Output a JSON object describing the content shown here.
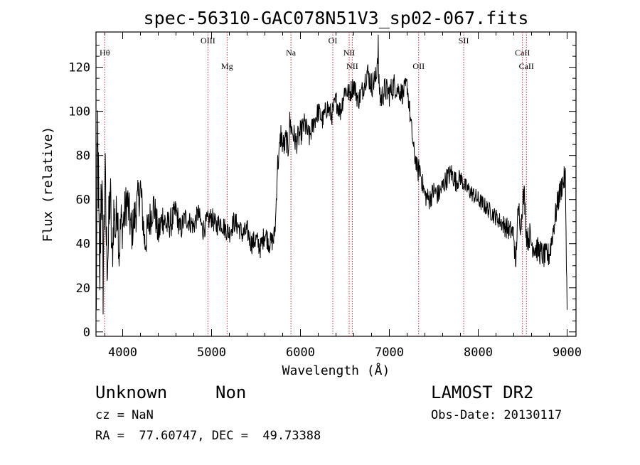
{
  "chart_data": {
    "type": "line",
    "title": "spec-56310-GAC078N51V3_sp02-067.fits",
    "xlabel": "Wavelength (Å)",
    "ylabel": "Flux (relative)",
    "xlim": [
      3700,
      9100
    ],
    "ylim": [
      -2,
      136
    ],
    "xticks": [
      4000,
      5000,
      6000,
      7000,
      8000,
      9000
    ],
    "yticks": [
      0,
      20,
      40,
      60,
      80,
      100,
      120
    ],
    "line_color": "#000000",
    "marker_line_color": "#b22222",
    "series": [
      {
        "x": [
          3700,
          3720,
          3740,
          3760,
          3780,
          3800,
          3820,
          3840,
          3860,
          3880,
          3900,
          3920,
          3940,
          3960,
          3980,
          4000,
          4050,
          4100,
          4150,
          4200,
          4250,
          4300,
          4350,
          4400,
          4450,
          4500,
          4550,
          4600,
          4650,
          4700,
          4750,
          4800,
          4850,
          4900,
          4950,
          5000,
          5050,
          5100,
          5150,
          5200,
          5250,
          5300,
          5350,
          5400,
          5450,
          5500,
          5550,
          5600,
          5650,
          5700,
          5720,
          5740,
          5760,
          5780,
          5800,
          5820,
          5840,
          5860,
          5880,
          5900,
          5950,
          6000,
          6050,
          6100,
          6150,
          6200,
          6250,
          6300,
          6350,
          6400,
          6450,
          6500,
          6550,
          6600,
          6650,
          6700,
          6750,
          6800,
          6850,
          6875,
          6880,
          6890,
          6900,
          6950,
          7000,
          7050,
          7100,
          7150,
          7200,
          7220,
          7240,
          7260,
          7280,
          7300,
          7320,
          7340,
          7360,
          7380,
          7400,
          7450,
          7500,
          7550,
          7600,
          7650,
          7700,
          7750,
          7800,
          7850,
          7900,
          7950,
          8000,
          8050,
          8100,
          8150,
          8200,
          8250,
          8300,
          8350,
          8400,
          8420,
          8440,
          8460,
          8480,
          8500,
          8520,
          8540,
          8560,
          8580,
          8600,
          8650,
          8700,
          8750,
          8800,
          8850,
          8900,
          8950,
          8980,
          9000
        ],
        "y": [
          5,
          90,
          15,
          75,
          25,
          70,
          35,
          40,
          65,
          30,
          55,
          45,
          60,
          35,
          50,
          48,
          60,
          45,
          55,
          65,
          40,
          50,
          58,
          44,
          52,
          48,
          50,
          55,
          46,
          52,
          50,
          48,
          54,
          46,
          50,
          52,
          48,
          50,
          47,
          45,
          50,
          48,
          44,
          46,
          40,
          42,
          38,
          45,
          40,
          42,
          50,
          75,
          80,
          90,
          85,
          84,
          88,
          82,
          95,
          92,
          86,
          90,
          94,
          88,
          95,
          100,
          96,
          102,
          98,
          105,
          100,
          110,
          108,
          112,
          105,
          110,
          118,
          112,
          115,
          130,
          112,
          110,
          105,
          110,
          108,
          112,
          110,
          108,
          112,
          104,
          95,
          88,
          80,
          78,
          72,
          75,
          70,
          66,
          62,
          60,
          64,
          62,
          66,
          70,
          72,
          68,
          70,
          66,
          64,
          62,
          60,
          58,
          56,
          54,
          52,
          50,
          48,
          46,
          45,
          28,
          50,
          55,
          48,
          60,
          62,
          45,
          42,
          44,
          40,
          38,
          36,
          34,
          35,
          48,
          60,
          68,
          70,
          10
        ],
        "noise_amp": [
          30,
          30,
          25,
          25,
          22,
          22,
          20,
          18,
          16,
          14,
          13,
          12,
          12,
          12,
          12,
          11,
          11,
          10,
          10,
          10,
          9,
          9,
          8,
          8,
          8,
          7,
          7,
          6,
          6,
          5,
          5,
          5,
          5,
          5,
          5,
          5,
          5,
          5,
          5,
          5,
          5,
          5,
          5,
          5,
          5,
          5,
          5,
          5,
          5,
          5,
          5,
          6,
          6,
          6,
          6,
          6,
          6,
          6,
          6,
          6,
          6,
          6,
          6,
          5,
          5,
          5,
          5,
          5,
          5,
          5,
          5,
          5,
          5,
          5,
          5,
          5,
          6,
          6,
          6,
          6,
          6,
          6,
          6,
          6,
          6,
          6,
          5,
          5,
          5,
          5,
          5,
          5,
          5,
          5,
          5,
          5,
          5,
          5,
          5,
          5,
          5,
          5,
          5,
          5,
          5,
          5,
          4,
          4,
          4,
          4,
          4,
          4,
          4,
          4,
          4,
          4,
          5,
          5,
          5,
          6,
          6,
          6,
          6,
          6,
          6,
          6,
          6,
          6,
          6,
          6,
          6,
          6,
          6,
          6,
          6,
          6,
          6,
          6
        ]
      }
    ],
    "lines": [
      {
        "label": "Hθ",
        "x": 3798,
        "row": 1
      },
      {
        "label": "OIII",
        "x": 4959,
        "row": 0
      },
      {
        "label": "Mg",
        "x": 5175,
        "row": 2
      },
      {
        "label": "Na",
        "x": 5893,
        "row": 1
      },
      {
        "label": "OI",
        "x": 6364,
        "row": 0
      },
      {
        "label": "NII",
        "x": 6548,
        "row": 1
      },
      {
        "label": "NII",
        "x": 6583,
        "row": 2
      },
      {
        "label": "OII",
        "x": 7330,
        "row": 2
      },
      {
        "label": "SII",
        "x": 7837,
        "row": 0
      },
      {
        "label": "CaII",
        "x": 8498,
        "row": 1
      },
      {
        "label": "CaII",
        "x": 8542,
        "row": 2
      }
    ]
  },
  "info": {
    "class": "Unknown",
    "subclass": "Non",
    "survey": "LAMOST DR2",
    "cz": "cz = NaN",
    "obs_date": "Obs-Date: 20130117",
    "coords": "RA =  77.60747, DEC =  49.73388"
  }
}
